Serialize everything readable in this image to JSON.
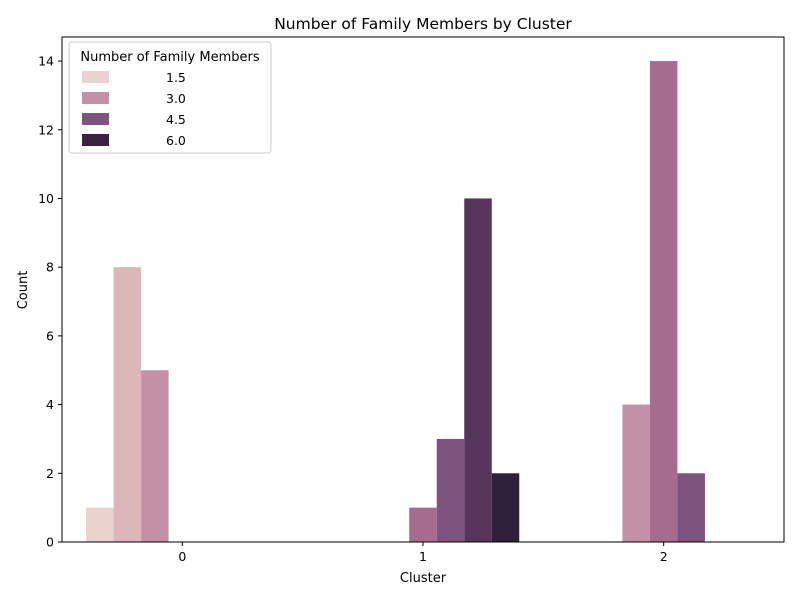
{
  "chart_data": {
    "type": "bar",
    "title": "Number of Family Members by Cluster",
    "xlabel": "Cluster",
    "ylabel": "Count",
    "categories": [
      "0",
      "1",
      "2"
    ],
    "ylim": [
      0,
      14.7
    ],
    "yticks": [
      "0",
      "2",
      "4",
      "6",
      "8",
      "10",
      "12",
      "14"
    ],
    "grid": false,
    "legend": {
      "title": "Number of Family Members",
      "placement": "top-left",
      "entries": [
        "1.5",
        "3.0",
        "4.5",
        "6.0"
      ],
      "colors": [
        "#ebd3d0",
        "#c390a5",
        "#7e537d",
        "#3b233f"
      ]
    },
    "series": [
      {
        "color": "#ead3cf",
        "values": [
          1,
          0,
          0
        ]
      },
      {
        "color": "#dcb6b8",
        "values": [
          8,
          0,
          0
        ]
      },
      {
        "color": "#c390a5",
        "values": [
          5,
          0,
          4
        ]
      },
      {
        "color": "#a56c8e",
        "values": [
          0,
          1,
          14
        ]
      },
      {
        "color": "#7e537d",
        "values": [
          0,
          3,
          2
        ]
      },
      {
        "color": "#55355a",
        "values": [
          0,
          10,
          0
        ]
      },
      {
        "color": "#2e1f3b",
        "values": [
          0,
          2,
          0
        ]
      }
    ]
  }
}
